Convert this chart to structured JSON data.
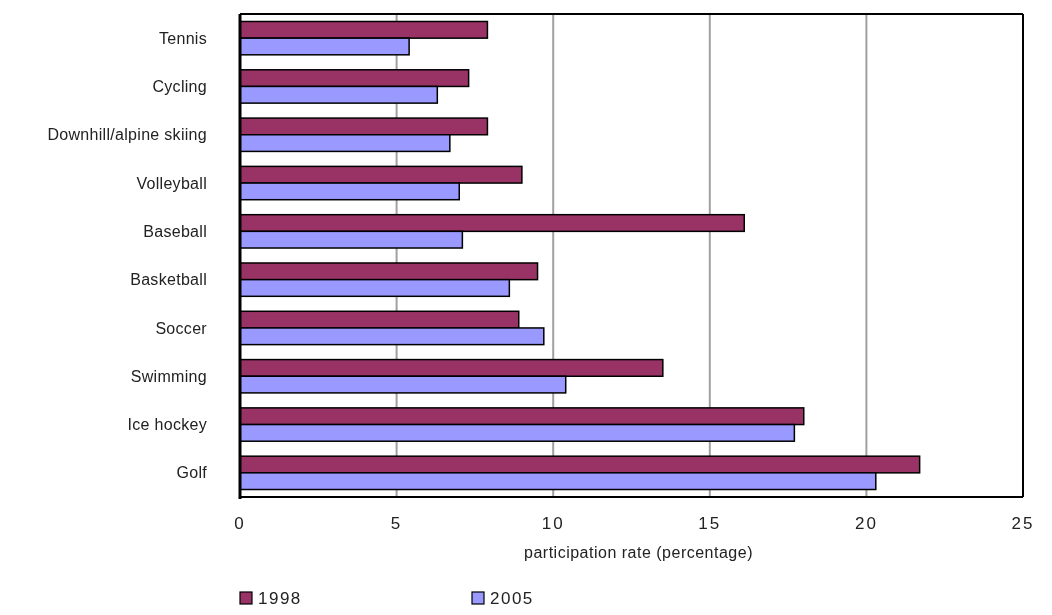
{
  "chart_data": {
    "type": "bar",
    "orientation": "horizontal",
    "categories": [
      "Tennis",
      "Cycling",
      "Downhill/alpine skiing",
      "Volleyball",
      "Baseball",
      "Basketball",
      "Soccer",
      "Swimming",
      "Ice hockey",
      "Golf"
    ],
    "series": [
      {
        "name": "1998",
        "color": "#993366",
        "values": [
          7.9,
          7.3,
          7.9,
          9.0,
          16.1,
          9.5,
          8.9,
          13.5,
          18.0,
          21.7
        ]
      },
      {
        "name": "2005",
        "color": "#9999ff",
        "values": [
          5.4,
          6.3,
          6.7,
          7.0,
          7.1,
          8.6,
          9.7,
          10.4,
          17.7,
          20.3
        ]
      }
    ],
    "xlabel": "participation rate (percentage)",
    "xlim": [
      0,
      25
    ],
    "xticks": [
      0,
      5,
      10,
      15,
      20,
      25
    ],
    "grid": "x",
    "legend": "bottom"
  }
}
